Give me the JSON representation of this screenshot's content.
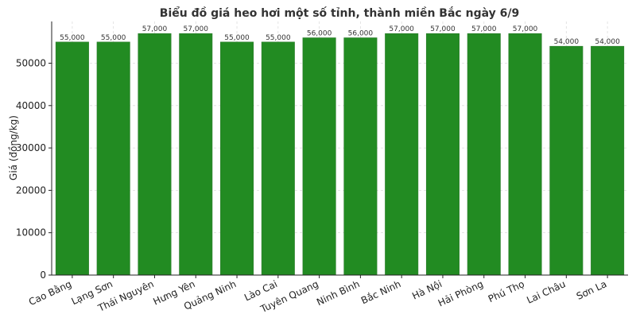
{
  "chart_data": {
    "type": "bar",
    "title": "Biểu đồ giá heo hơi một số tỉnh, thành miền Bắc ngày 6/9",
    "xlabel": "",
    "ylabel": "Giá (đồng/kg)",
    "categories": [
      "Cao Bằng",
      "Lạng Sơn",
      "Thái Nguyên",
      "Hưng Yên",
      "Quảng Ninh",
      "Lào Cai",
      "Tuyên Quang",
      "Ninh Bình",
      "Bắc Ninh",
      "Hà Nội",
      "Hải Phòng",
      "Phú Thọ",
      "Lai Châu",
      "Sơn La"
    ],
    "values": [
      55000,
      55000,
      57000,
      57000,
      55000,
      55000,
      56000,
      56000,
      57000,
      57000,
      57000,
      57000,
      54000,
      54000
    ],
    "data_labels": [
      "55,000",
      "55,000",
      "57,000",
      "57,000",
      "55,000",
      "55,000",
      "56,000",
      "56,000",
      "57,000",
      "57,000",
      "57,000",
      "57,000",
      "54,000",
      "54,000"
    ],
    "yticks": [
      0,
      10000,
      20000,
      30000,
      40000,
      50000
    ],
    "ytick_labels": [
      "0",
      "10000",
      "20000",
      "30000",
      "40000",
      "50000"
    ],
    "ylim": [
      0,
      59850
    ],
    "grid": true,
    "legend": "none",
    "bar_color": "#228b22",
    "bar_edge_color": "#2e7d2e"
  }
}
